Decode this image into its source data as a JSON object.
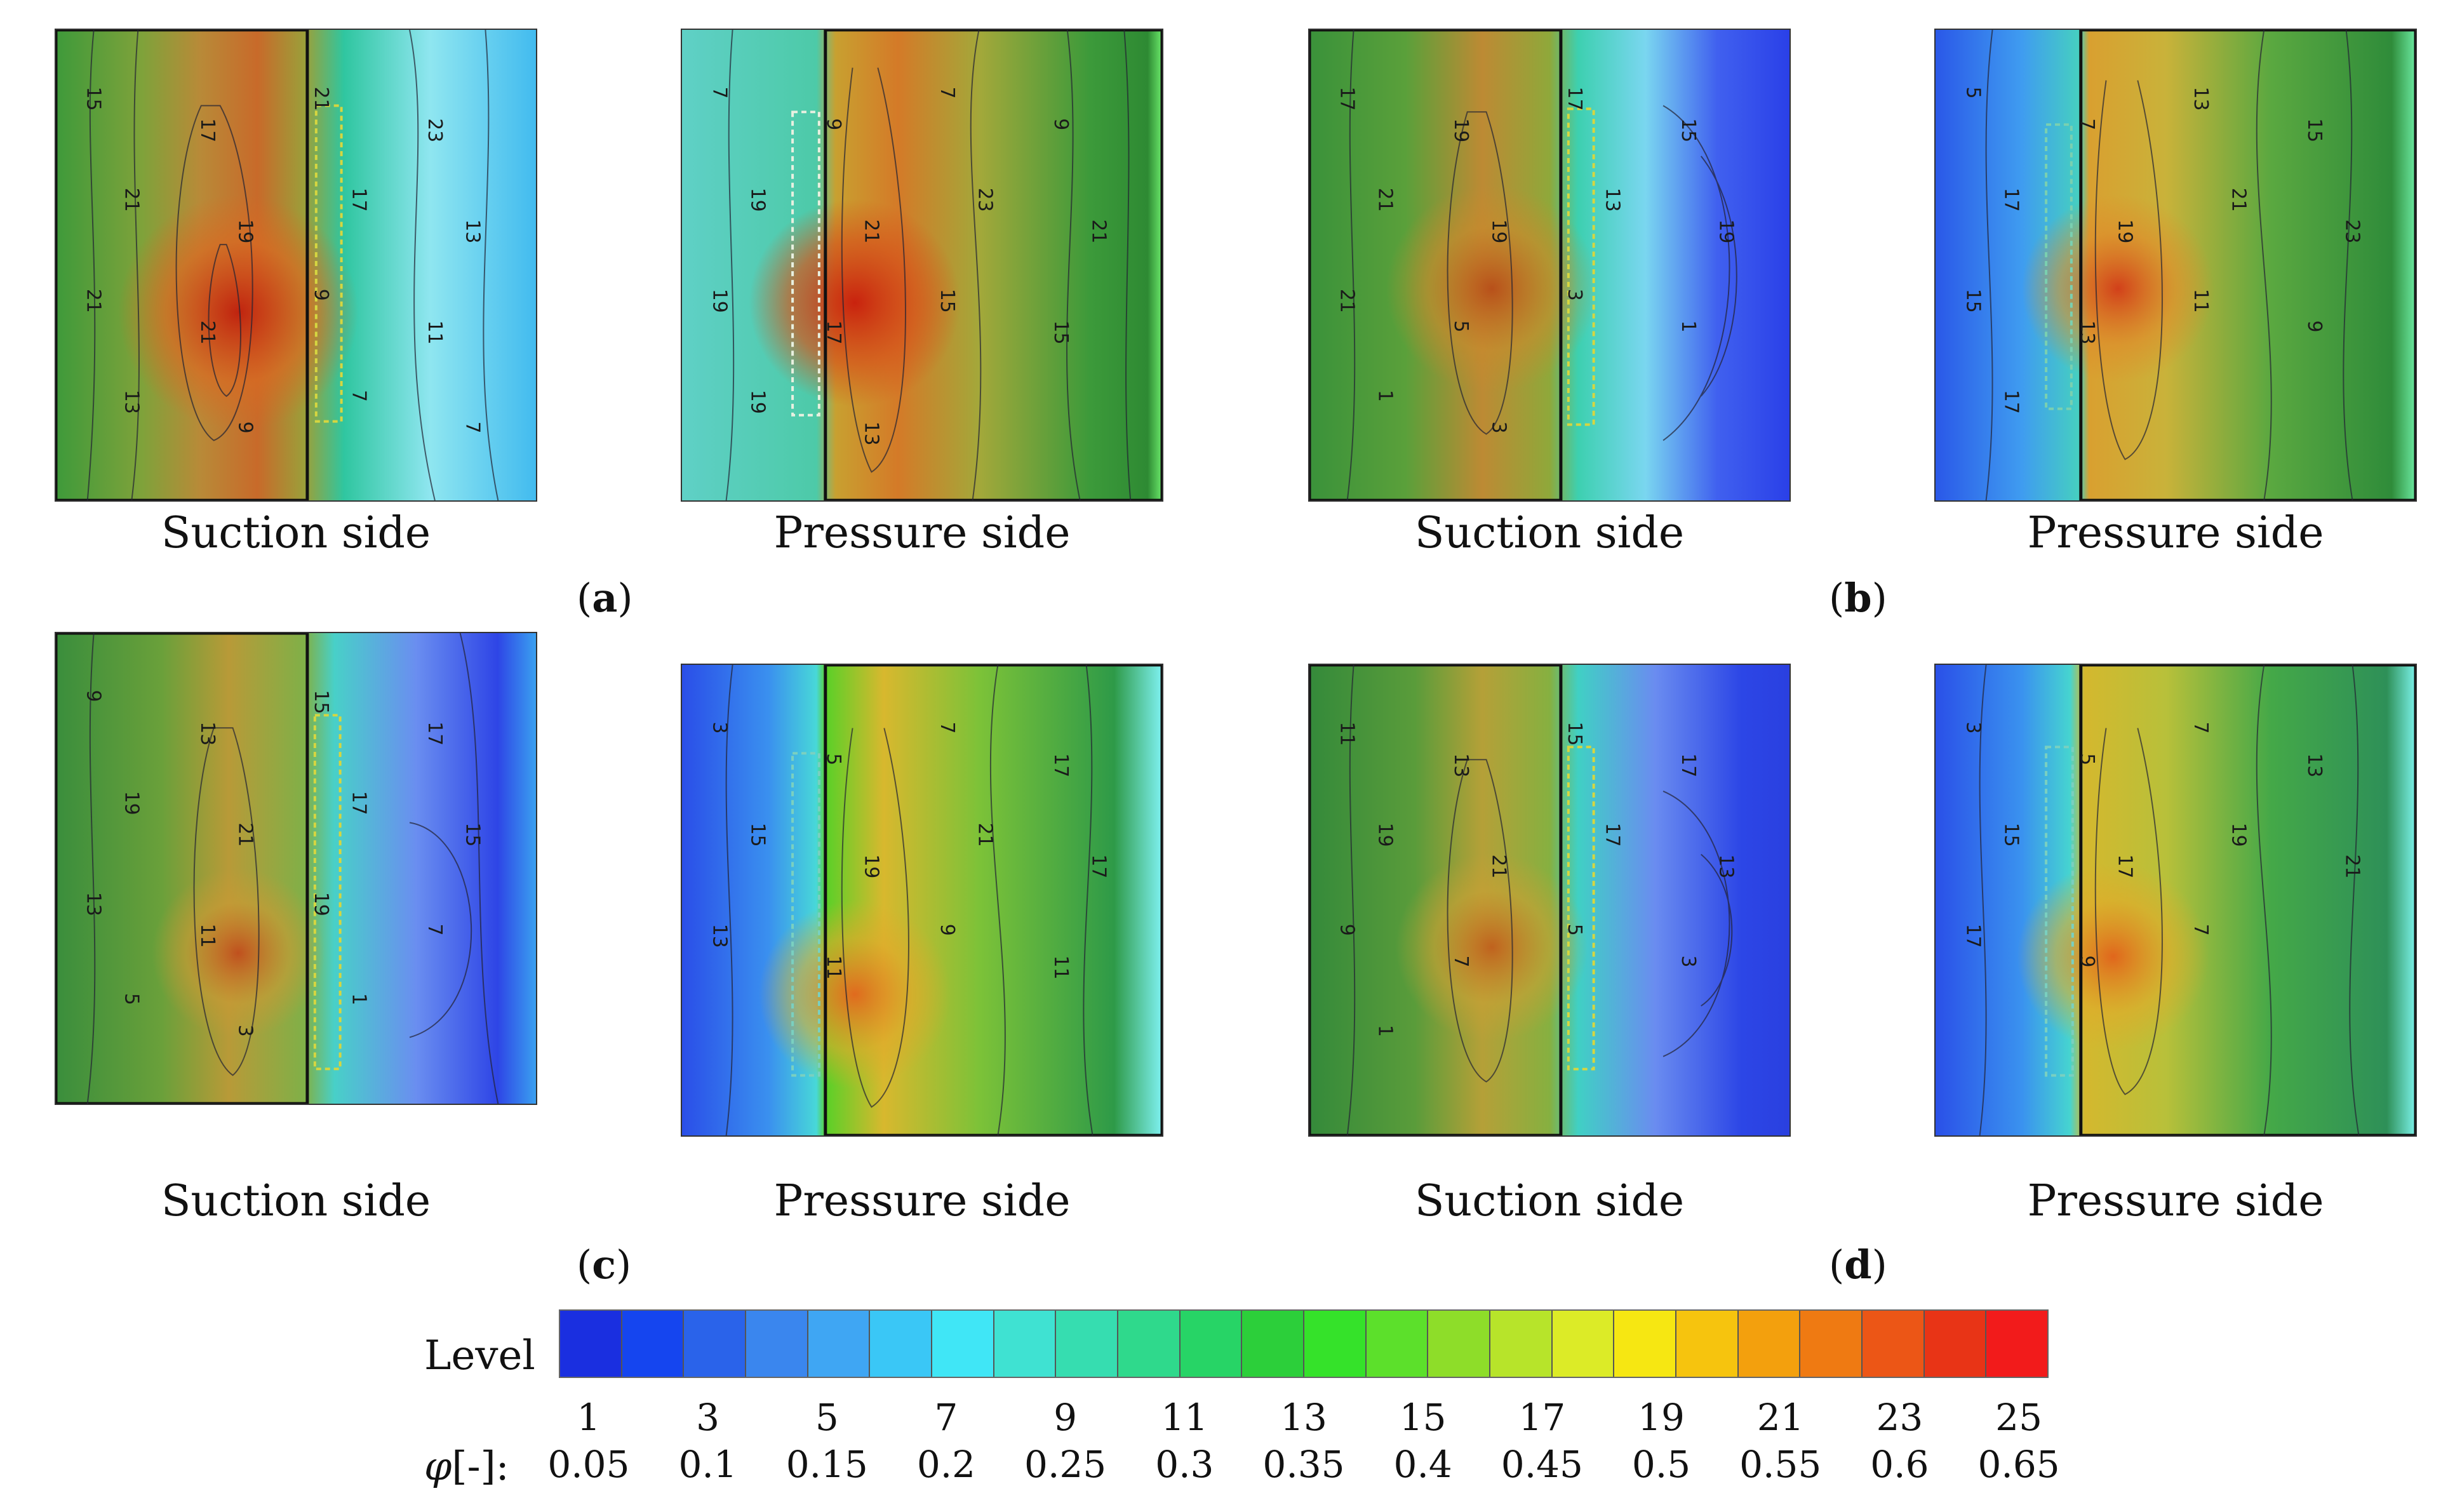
{
  "panels": {
    "a": {
      "label": "a",
      "suction": {
        "caption": "Suction side",
        "contour_labels": [
          "15",
          "17",
          "21",
          "23",
          "21",
          "19",
          "17",
          "13",
          "21",
          "21",
          "9",
          "11",
          "13",
          "9",
          "7",
          "7"
        ]
      },
      "pressure": {
        "caption": "Pressure side",
        "contour_labels": [
          "7",
          "9",
          "7",
          "9",
          "19",
          "21",
          "23",
          "21",
          "19",
          "17",
          "15",
          "15",
          "19",
          "13"
        ]
      }
    },
    "b": {
      "label": "b",
      "suction": {
        "caption": "Suction side",
        "contour_labels": [
          "17",
          "19",
          "17",
          "15",
          "21",
          "19",
          "13",
          "19",
          "21",
          "5",
          "3",
          "1",
          "1",
          "3"
        ]
      },
      "pressure": {
        "caption": "Pressure side",
        "contour_labels": [
          "5",
          "7",
          "13",
          "15",
          "17",
          "19",
          "21",
          "23",
          "15",
          "13",
          "11",
          "9",
          "17"
        ]
      }
    },
    "c": {
      "label": "c",
      "suction": {
        "caption": "Suction side",
        "contour_labels": [
          "9",
          "13",
          "15",
          "17",
          "19",
          "21",
          "17",
          "15",
          "13",
          "11",
          "19",
          "7",
          "5",
          "3",
          "1"
        ]
      },
      "pressure": {
        "caption": "Pressure side",
        "contour_labels": [
          "3",
          "5",
          "7",
          "17",
          "15",
          "19",
          "21",
          "17",
          "13",
          "11",
          "9",
          "11"
        ]
      }
    },
    "d": {
      "label": "d",
      "suction": {
        "caption": "Suction side",
        "contour_labels": [
          "11",
          "13",
          "15",
          "17",
          "19",
          "21",
          "17",
          "13",
          "9",
          "7",
          "5",
          "3",
          "1"
        ]
      },
      "pressure": {
        "caption": "Pressure side",
        "contour_labels": [
          "3",
          "5",
          "7",
          "13",
          "15",
          "17",
          "19",
          "21",
          "17",
          "9",
          "7"
        ]
      }
    }
  },
  "legend": {
    "title": "Level",
    "phi_symbol": "φ",
    "phi_unit": "[-]:",
    "levels": [
      "1",
      "3",
      "5",
      "7",
      "9",
      "11",
      "13",
      "15",
      "17",
      "19",
      "21",
      "23",
      "25"
    ],
    "phi_values": [
      "0.05",
      "0.1",
      "0.15",
      "0.2",
      "0.25",
      "0.3",
      "0.35",
      "0.4",
      "0.45",
      "0.5",
      "0.55",
      "0.6",
      "0.65"
    ],
    "colors": [
      "#1a2fe0",
      "#1545ef",
      "#2a63ea",
      "#3a86ee",
      "#3fa6f3",
      "#3ac7f6",
      "#40e6f6",
      "#3fe2d2",
      "#36ddb0",
      "#2fd98c",
      "#27d466",
      "#2ccf3a",
      "#35e22a",
      "#5ce02b",
      "#8edd29",
      "#b7e42a",
      "#dceb27",
      "#f6e712",
      "#f6c40e",
      "#f3a00d",
      "#ef7a12",
      "#ec5616",
      "#e83416",
      "#f21b1b"
    ]
  },
  "colors": {
    "cold": "#2a4af0",
    "cool": "#3fc8f2",
    "mid": "#2fb56d",
    "warm": "#d9b032",
    "hot": "#d9541b"
  }
}
